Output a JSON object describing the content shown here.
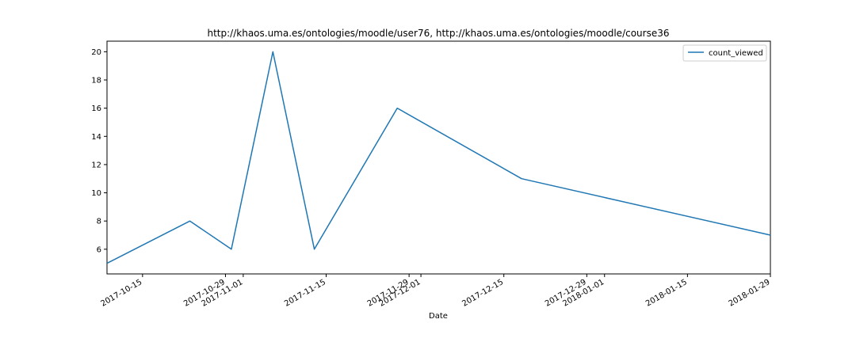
{
  "chart_data": {
    "type": "line",
    "title": "http://khaos.uma.es/ontologies/moodle/user76, http://khaos.uma.es/ontologies/moodle/course36",
    "xlabel": "Date",
    "ylabel": "",
    "x": [
      "2017-10-09",
      "2017-10-23",
      "2017-10-30",
      "2017-11-06",
      "2017-11-13",
      "2017-11-27",
      "2017-12-18",
      "2018-01-29"
    ],
    "series": [
      {
        "name": "count_viewed",
        "values": [
          5,
          8,
          6,
          20,
          6,
          16,
          11,
          7
        ],
        "color": "#1f77b4"
      }
    ],
    "xlim": [
      "2017-10-09",
      "2018-01-29"
    ],
    "ylim": [
      4.25,
      20.75
    ],
    "x_ticks": [
      "2017-10-15",
      "2017-10-29",
      "2017-11-01",
      "2017-11-15",
      "2017-11-29",
      "2017-12-01",
      "2017-12-15",
      "2017-12-29",
      "2018-01-01",
      "2018-01-15",
      "2018-01-29"
    ],
    "y_ticks": [
      6,
      8,
      10,
      12,
      14,
      16,
      18,
      20
    ],
    "grid": false,
    "legend_position": "top-right"
  }
}
